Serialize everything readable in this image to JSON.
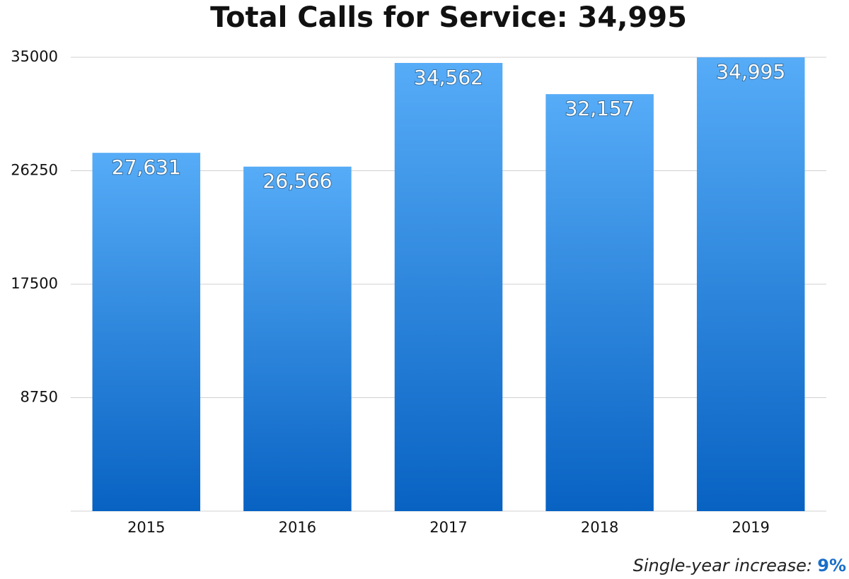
{
  "chart_data": {
    "type": "bar",
    "title": "Total Calls for Service: 34,995",
    "categories": [
      "2015",
      "2016",
      "2017",
      "2018",
      "2019"
    ],
    "values": [
      27631,
      26566,
      34562,
      32157,
      34995
    ],
    "value_labels": [
      "27,631",
      "26,566",
      "34,562",
      "32,157",
      "34,995"
    ],
    "color": "#1f7ee0",
    "ylim": [
      0,
      35000
    ],
    "yticks": [
      8750,
      17500,
      26250,
      35000
    ],
    "grid": true,
    "annotation": "Single-year increase:",
    "annotation_value": "9%"
  }
}
